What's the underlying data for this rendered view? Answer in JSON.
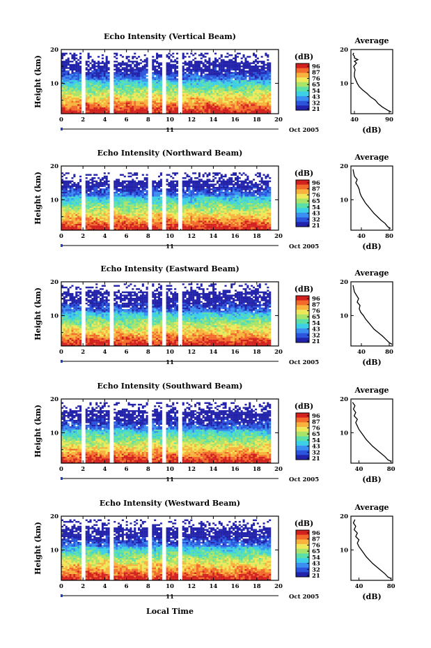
{
  "figure": {
    "xlabel": "Local Time",
    "x_ticks": [
      "0",
      "2",
      "4",
      "6",
      "8",
      "10",
      "12",
      "14",
      "16",
      "18",
      "20"
    ],
    "day_label": "11",
    "date_label": "Oct 2005",
    "y_ticks": [
      "10",
      "20"
    ],
    "ylabel": "Height (km)",
    "colorbar_unit": "(dB)",
    "colorbar_labels": [
      "96",
      "87",
      "76",
      "65",
      "54",
      "43",
      "32",
      "21"
    ],
    "avg_ylabels": [
      "10",
      "20"
    ]
  },
  "colors": {
    "colormap": [
      "#2222aa",
      "#2b55dd",
      "#3a8ff0",
      "#3ccfe6",
      "#5de0a8",
      "#a8e36a",
      "#efe85a",
      "#f7b33e",
      "#f26b2c",
      "#d2211e"
    ],
    "white_gap": "#ffffff",
    "axis": "#000000"
  },
  "chart_data": [
    {
      "type": "heatmap",
      "title": "Echo Intensity (Vertical Beam)",
      "x_range": [
        0,
        20
      ],
      "y_range": [
        1,
        20
      ],
      "z_range": [
        21,
        96
      ],
      "data_gaps_hours": [
        2.0,
        4.7,
        8.1,
        9.4,
        10.9
      ],
      "profile_top_km": 18,
      "average_profile": {
        "title": "Average",
        "xlabel": "(dB)",
        "x_ticks": [
          "40",
          "90"
        ],
        "x_range": [
          35,
          95
        ],
        "height_km": [
          1.5,
          2,
          3,
          4,
          5,
          6,
          7,
          8,
          9,
          10,
          11,
          12,
          13,
          14,
          15,
          16,
          16.5,
          17,
          17.5,
          18,
          18.5,
          19
        ],
        "db": [
          93,
          88,
          80,
          74,
          70,
          63,
          58,
          52,
          47,
          44,
          42,
          40,
          40,
          41,
          39,
          43,
          40,
          45,
          40,
          40,
          38,
          39
        ]
      }
    },
    {
      "type": "heatmap",
      "title": "Echo Intensity (Northward Beam)",
      "x_range": [
        0,
        20
      ],
      "y_range": [
        1,
        20
      ],
      "z_range": [
        21,
        96
      ],
      "data_gaps_hours": [
        2.0,
        4.7,
        8.1,
        9.4,
        10.9
      ],
      "profile_top_km": 17,
      "average_profile": {
        "title": "Average",
        "xlabel": "(dB)",
        "x_ticks": [
          "40",
          "80"
        ],
        "x_range": [
          25,
          85
        ],
        "height_km": [
          1.5,
          2,
          3,
          4,
          5,
          6,
          7,
          8,
          9,
          10,
          11,
          12,
          13,
          14,
          15,
          16,
          17,
          18,
          19
        ],
        "db": [
          82,
          78,
          74,
          68,
          63,
          58,
          54,
          50,
          46,
          43,
          40,
          38,
          37,
          35,
          32,
          34,
          30,
          29,
          28
        ]
      }
    },
    {
      "type": "heatmap",
      "title": "Echo Intensity (Eastward Beam)",
      "x_range": [
        0,
        20
      ],
      "y_range": [
        1,
        20
      ],
      "z_range": [
        21,
        96
      ],
      "data_gaps_hours": [
        2.0,
        4.7,
        8.1,
        9.4,
        10.9
      ],
      "profile_top_km": 18.5,
      "average_profile": {
        "title": "Average",
        "xlabel": "(dB)",
        "x_ticks": [
          "40",
          "80"
        ],
        "x_range": [
          25,
          85
        ],
        "height_km": [
          1.5,
          2,
          3,
          4,
          5,
          6,
          7,
          8,
          9,
          10,
          11,
          12,
          13,
          14,
          15,
          16,
          17,
          18,
          19
        ],
        "db": [
          84,
          80,
          75,
          70,
          64,
          58,
          54,
          50,
          46,
          43,
          39,
          37,
          38,
          34,
          36,
          33,
          30,
          29,
          28
        ]
      }
    },
    {
      "type": "heatmap",
      "title": "Echo Intensity (Southward Beam)",
      "x_range": [
        0,
        20
      ],
      "y_range": [
        1,
        20
      ],
      "z_range": [
        21,
        96
      ],
      "data_gaps_hours": [
        2.0,
        4.7,
        8.1,
        9.4,
        10.9
      ],
      "profile_top_km": 18,
      "average_profile": {
        "title": "Average",
        "xlabel": "(dB)",
        "x_ticks": [
          "40",
          "80"
        ],
        "x_range": [
          30,
          82
        ],
        "height_km": [
          1.5,
          2,
          3,
          4,
          5,
          6,
          7,
          8,
          9,
          10,
          11,
          12,
          13,
          14,
          15,
          16,
          17,
          18,
          19
        ],
        "db": [
          80,
          76,
          72,
          67,
          62,
          57,
          53,
          49,
          46,
          43,
          40,
          38,
          36,
          38,
          34,
          36,
          33,
          35,
          32
        ]
      }
    },
    {
      "type": "heatmap",
      "title": "Echo Intensity (Westward Beam)",
      "x_range": [
        0,
        20
      ],
      "y_range": [
        1,
        20
      ],
      "z_range": [
        21,
        96
      ],
      "data_gaps_hours": [
        2.0,
        4.7,
        8.1,
        9.4,
        10.9
      ],
      "profile_top_km": 18,
      "average_profile": {
        "title": "Average",
        "xlabel": "(dB)",
        "x_ticks": [
          "40",
          "80"
        ],
        "x_range": [
          30,
          82
        ],
        "height_km": [
          1.5,
          2,
          3,
          4,
          5,
          6,
          7,
          8,
          9,
          10,
          11,
          12,
          13,
          14,
          15,
          16,
          17,
          18,
          19
        ],
        "db": [
          80,
          76,
          72,
          67,
          62,
          57,
          53,
          49,
          46,
          43,
          40,
          38,
          40,
          36,
          38,
          34,
          36,
          33,
          35
        ]
      }
    }
  ]
}
